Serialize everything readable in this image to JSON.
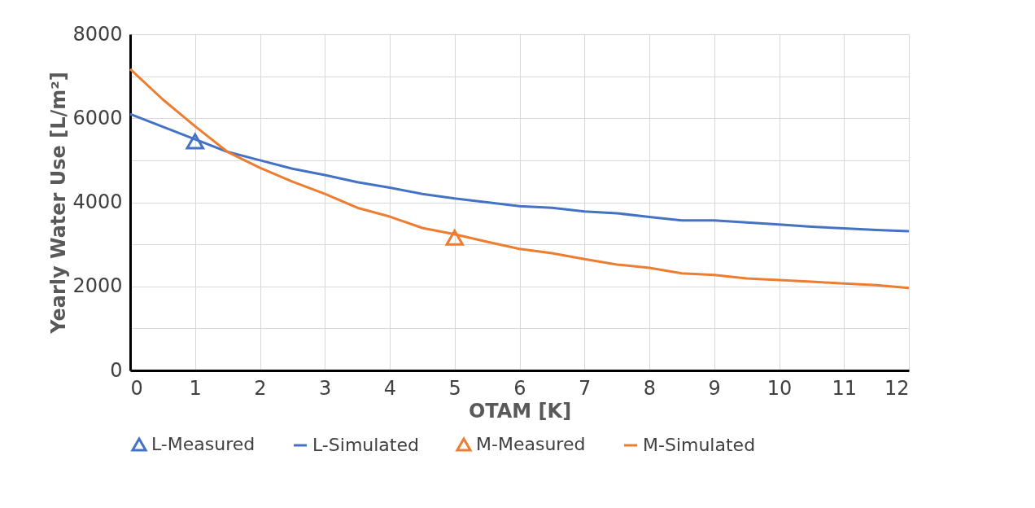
{
  "chart_data": {
    "type": "line",
    "xlabel": "OTAM [K]",
    "ylabel": "Yearly Water Use [L/m²]",
    "xlim": [
      0,
      12
    ],
    "xticks": [
      0,
      1,
      2,
      3,
      4,
      5,
      6,
      7,
      8,
      9,
      10,
      11,
      12
    ],
    "ylim": [
      0,
      8000
    ],
    "yticks": [
      0,
      {
        "value": 1000,
        "label": null
      },
      2000,
      {
        "value": 3000,
        "label": null
      },
      4000,
      {
        "value": 5000,
        "label": null
      },
      6000,
      {
        "value": 7000,
        "label": null
      },
      8000
    ],
    "grid": true,
    "legend": "bottom",
    "line_style": "solid",
    "series": [
      {
        "name": "L-Measured",
        "type": "scatter",
        "marker": "triangle",
        "color": "#4472c4",
        "x": [
          1
        ],
        "values": [
          5450
        ]
      },
      {
        "name": "L-Simulated",
        "color": "#4472c4",
        "x": [
          0,
          0.5,
          1,
          1.5,
          2,
          2.5,
          3,
          3.5,
          4,
          4.5,
          5,
          5.5,
          6,
          6.5,
          7,
          7.5,
          8,
          8.5,
          9,
          9.5,
          10,
          10.5,
          11,
          11.5,
          12
        ],
        "values": [
          6100,
          5800,
          5500,
          5200,
          5000,
          4800,
          4650,
          4480,
          4350,
          4200,
          4090,
          4000,
          3910,
          3870,
          3780,
          3740,
          3650,
          3570,
          3570,
          3520,
          3470,
          3420,
          3380,
          3340,
          3310
        ]
      },
      {
        "name": "M-Measured",
        "type": "scatter",
        "marker": "triangle",
        "color": "#ed7d31",
        "x": [
          5
        ],
        "values": [
          3160
        ]
      },
      {
        "name": "M-Simulated",
        "color": "#ed7d31",
        "x": [
          0,
          0.5,
          1,
          1.5,
          2,
          2.5,
          3,
          3.5,
          4,
          4.5,
          5,
          5.5,
          6,
          6.5,
          7,
          7.5,
          8,
          8.5,
          9,
          9.5,
          10,
          10.5,
          11,
          11.5,
          12
        ],
        "values": [
          7170,
          6450,
          5810,
          5200,
          4820,
          4490,
          4200,
          3870,
          3660,
          3390,
          3240,
          3060,
          2890,
          2790,
          2650,
          2520,
          2440,
          2310,
          2270,
          2190,
          2150,
          2110,
          2070,
          2030,
          1960
        ]
      }
    ]
  }
}
